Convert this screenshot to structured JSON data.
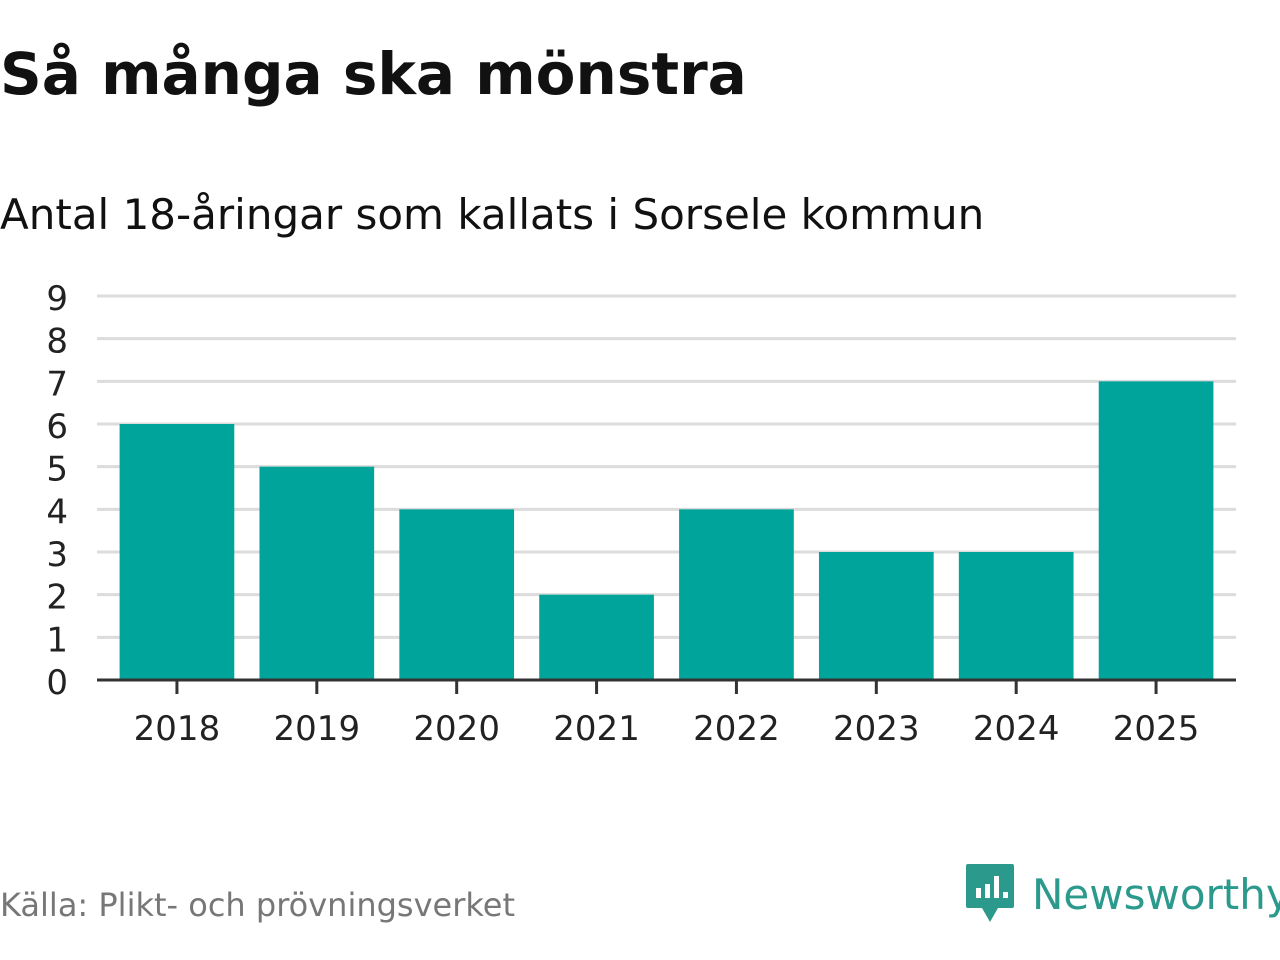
{
  "chart_data": {
    "type": "bar",
    "title": "Så många ska mönstra",
    "subtitle": "Antal 18-åringar som kallats i Sorsele kommun",
    "categories": [
      "2018",
      "2019",
      "2020",
      "2021",
      "2022",
      "2023",
      "2024",
      "2025"
    ],
    "values": [
      6,
      5,
      4,
      2,
      4,
      3,
      3,
      7
    ],
    "yticks": [
      "0",
      "1",
      "2",
      "3",
      "4",
      "5",
      "6",
      "7",
      "8",
      "9"
    ],
    "ylim": [
      0,
      9
    ],
    "xlabel": "",
    "ylabel": "",
    "grid": true,
    "bar_color": "#00a49a"
  },
  "footer": {
    "source": "Källa: Plikt- och prövningsverket",
    "brand": "Newsworthy",
    "brand_icon": "newsworthy-logo-icon",
    "brand_color": "#2b9a8d"
  }
}
